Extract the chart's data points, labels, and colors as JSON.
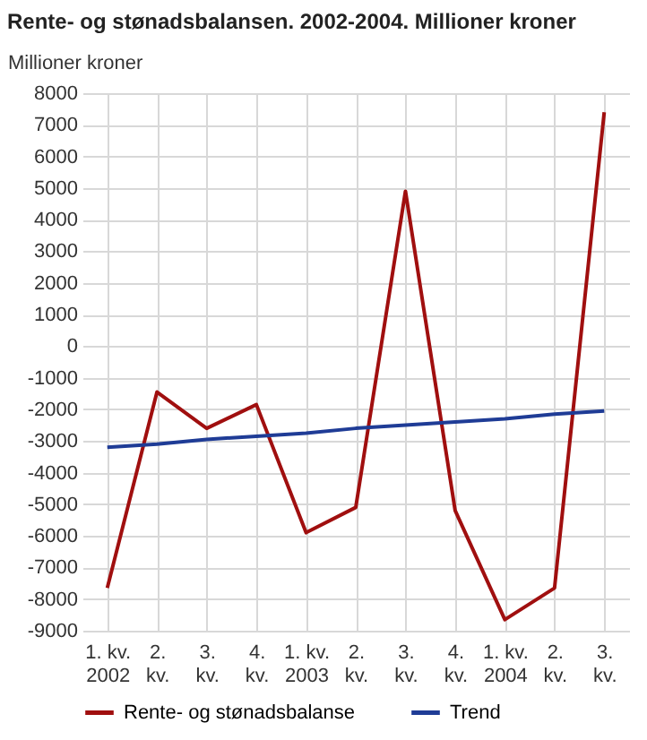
{
  "chart_data": {
    "type": "line",
    "title": "Rente- og stønadsbalansen. 2002-2004. Millioner kroner",
    "ylabel": "Millioner kroner",
    "categories": [
      "1. kv.\n2002",
      "2.\nkv.",
      "3.\nkv.",
      "4.\nkv.",
      "1. kv.\n2003",
      "2.\nkv.",
      "3.\nkv.",
      "4.\nkv.",
      "1. kv.\n2004",
      "2.\nkv.",
      "3.\nkv."
    ],
    "series": [
      {
        "name": "Rente- og stønadsbalanse",
        "color": "#a00f0f",
        "values": [
          -7650,
          -1450,
          -2600,
          -1850,
          -5900,
          -5100,
          4900,
          -5200,
          -8650,
          -7650,
          7400
        ]
      },
      {
        "name": "Trend",
        "color": "#1f3c96",
        "values": [
          -3200,
          -3100,
          -2950,
          -2850,
          -2750,
          -2600,
          -2500,
          -2400,
          -2300,
          -2150,
          -2050
        ]
      }
    ],
    "ylim": [
      -9000,
      8000
    ],
    "yticks": [
      -9000,
      -8000,
      -7000,
      -6000,
      -5000,
      -4000,
      -3000,
      -2000,
      -1000,
      0,
      1000,
      2000,
      3000,
      4000,
      5000,
      6000,
      7000,
      8000
    ],
    "grid": true,
    "legend": "bottom",
    "marker": "none",
    "line_style": "solid"
  }
}
